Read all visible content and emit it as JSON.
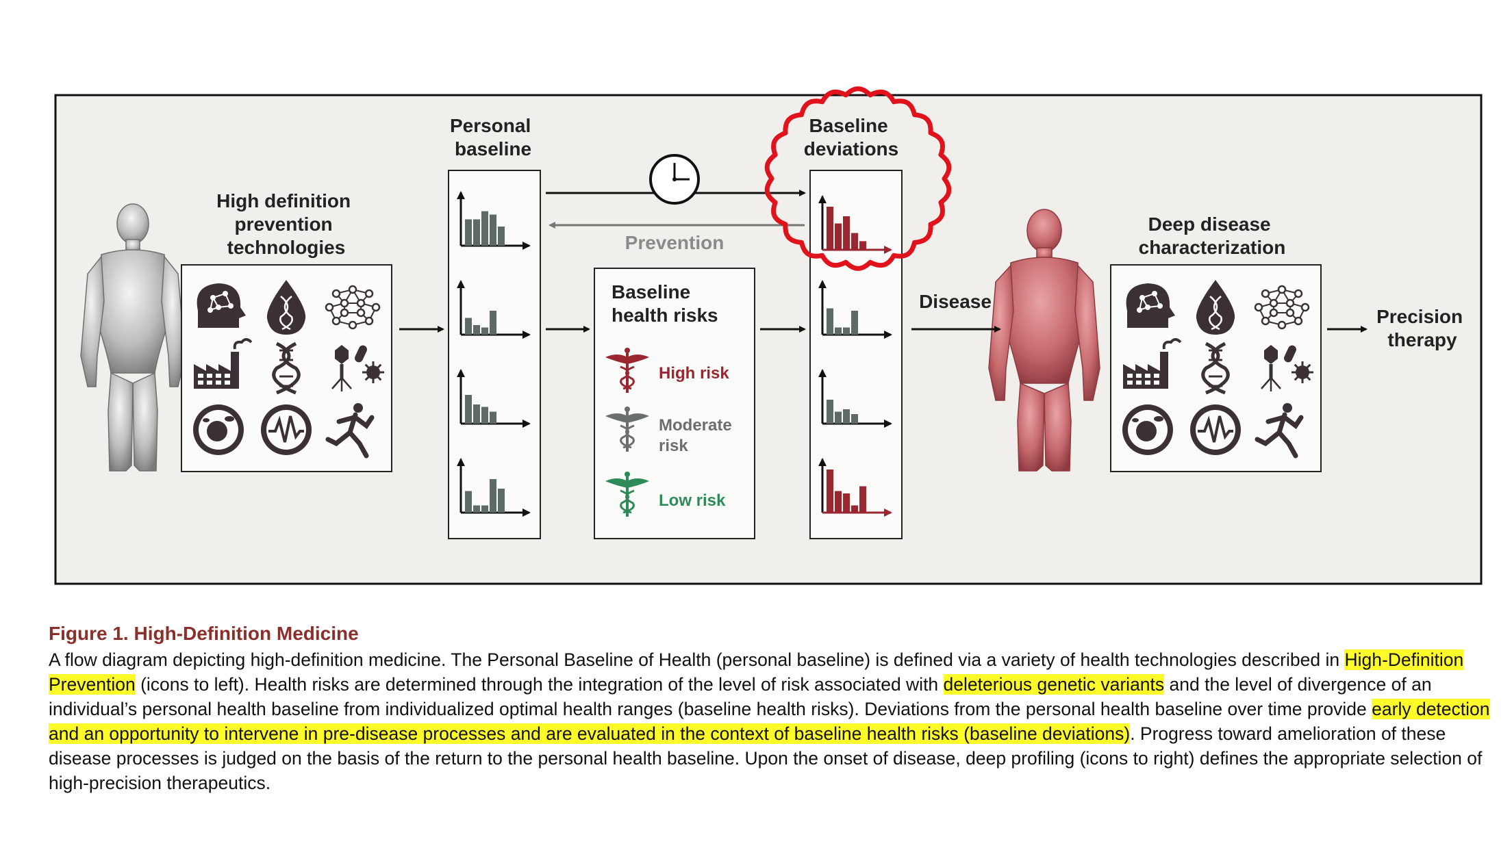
{
  "diagram": {
    "left_heading": [
      "High definition",
      "prevention",
      "technologies"
    ],
    "personal_baseline": [
      "Personal",
      "baseline"
    ],
    "baseline_deviations": [
      "Baseline",
      "deviations"
    ],
    "prevention": "Prevention",
    "baseline_health_risks": [
      "Baseline",
      "health risks"
    ],
    "risk_high": "High risk",
    "risk_moderate": [
      "Moderate",
      "risk"
    ],
    "risk_low": "Low risk",
    "disease": "Disease",
    "deep_disease": [
      "Deep disease",
      "characterization"
    ],
    "precision_therapy": [
      "Precision",
      "therapy"
    ],
    "colors": {
      "baseline_bars": "#5c6b63",
      "deviation_bars": "#9a2630",
      "high_risk": "#9a2630",
      "moderate_risk": "#6b6f6b",
      "low_risk": "#2e8b57",
      "highlight_circle": "#e0121b",
      "panel_bg": "#f0efec",
      "icon_dark": "#3a3035"
    },
    "icons": [
      "brain-network-icon",
      "dna-drop-icon",
      "molecule-network-icon",
      "factory-icon",
      "dna-helix-icon",
      "virus-bacteria-icon",
      "cell-icon",
      "heart-rhythm-icon",
      "runner-icon"
    ]
  },
  "caption": {
    "title": "Figure 1.  High-Definition Medicine",
    "p1": "A flow diagram depicting high-definition medicine. The Personal Baseline of Health (personal baseline) is defined via a variety of health technologies described in ",
    "h1": "High-Definition Prevention",
    "p2": " (icons to left). Health risks are determined through the integration of the level of risk associated with ",
    "h2": "deleterious genetic variants",
    "p3": " and the level of divergence of an individual’s personal health baseline from individualized optimal health ranges (baseline health risks). Deviations from the personal health baseline over time provide ",
    "h3": "early detection and an opportunity to intervene in pre-disease processes and are evaluated in the context of baseline health risks (baseline deviations)",
    "p4": ". Progress toward amelioration of these disease processes is judged on the basis of the return to the personal health baseline. Upon the onset of disease, deep profiling (icons to right) defines the appropriate selection of high-precision therapeutics."
  }
}
